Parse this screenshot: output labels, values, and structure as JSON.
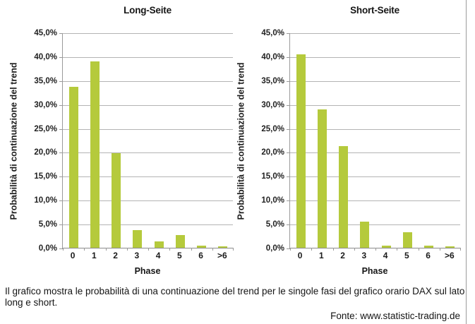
{
  "colors": {
    "bar": "#b5ca3c",
    "grid": "#b3b3b3",
    "axis": "#9a9a9a",
    "divider": "#9b9b9b"
  },
  "caption": {
    "text": "Il grafico mostra le probabilità di una continuazione del trend per le singole fasi del grafico orario DAX sul lato long e short.",
    "source": "Fonte: www.statistic-trading.de"
  },
  "chart_data": [
    {
      "type": "bar",
      "title": "Long-Seite",
      "categories": [
        "0",
        "1",
        "2",
        "3",
        "4",
        "5",
        "6",
        ">6"
      ],
      "values": [
        33.6,
        38.9,
        19.8,
        3.7,
        1.3,
        2.6,
        0.4,
        0.3
      ],
      "xlabel": "Phase",
      "ylabel": "Probabilità di continuazione del trend",
      "ylim": [
        0,
        45
      ],
      "ytick_step": 5,
      "ytick_labels": [
        "45,0%",
        "40,0%",
        "35,0%",
        "30,0%",
        "25,0%",
        "20,0%",
        "15,0%",
        "10,0%",
        "5,0%",
        "0,0%"
      ],
      "grid": true,
      "legend": false
    },
    {
      "type": "bar",
      "title": "Short-Seite",
      "categories": [
        "0",
        "1",
        "2",
        "3",
        "4",
        "5",
        "6",
        ">6"
      ],
      "values": [
        40.4,
        28.9,
        21.3,
        5.5,
        0.5,
        3.2,
        0.4,
        0.3
      ],
      "xlabel": "Phase",
      "ylabel": "Probabilità di continuazione del trend",
      "ylim": [
        0,
        45
      ],
      "ytick_step": 5,
      "ytick_labels": [
        "45,0%",
        "40,0%",
        "35,0%",
        "30,0%",
        "25,0%",
        "20,0%",
        "15,0%",
        "10,0%",
        "5,0%",
        "0,0%"
      ],
      "grid": true,
      "legend": false
    }
  ]
}
